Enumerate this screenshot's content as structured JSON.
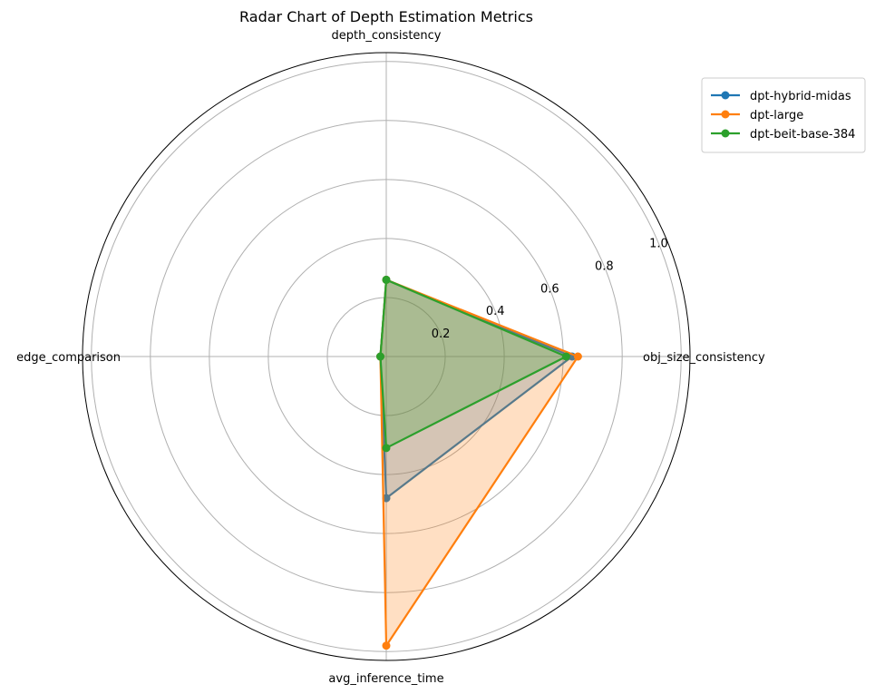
{
  "chart_data": {
    "type": "radar",
    "title": "Radar Chart of Depth Estimation Metrics",
    "axes": [
      "obj_size_consistency",
      "depth_consistency",
      "edge_comparison",
      "avg_inference_time"
    ],
    "rticks": [
      "0.2",
      "0.4",
      "0.6",
      "0.8",
      "1.0"
    ],
    "rtick_values": [
      0.2,
      0.4,
      0.6,
      0.8,
      1.0
    ],
    "rlim": [
      0,
      1.03
    ],
    "grid": true,
    "legend_position": "top-right",
    "series": [
      {
        "name": "dpt-hybrid-midas",
        "color": "#1f77b4",
        "values": [
          0.63,
          0.26,
          0.02,
          0.48
        ]
      },
      {
        "name": "dpt-large",
        "color": "#ff7f0e",
        "values": [
          0.65,
          0.26,
          0.02,
          0.98
        ]
      },
      {
        "name": "dpt-beit-base-384",
        "color": "#2ca02c",
        "values": [
          0.61,
          0.26,
          0.02,
          0.31
        ]
      }
    ]
  }
}
